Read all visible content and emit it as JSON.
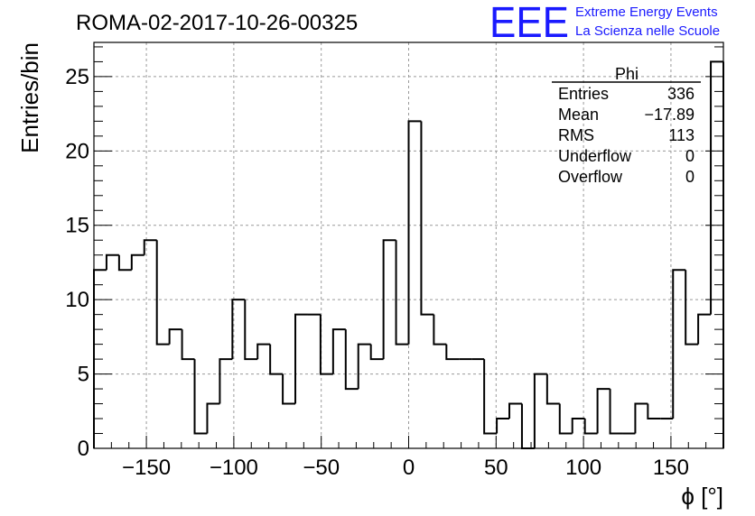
{
  "title": "ROMA-02-2017-10-26-00325",
  "logo": {
    "letters": "EEE",
    "line1": "Extreme Energy Events",
    "line2": "La Scienza nelle Scuole",
    "color": "#1a1aff"
  },
  "stats": {
    "name": "Phi",
    "rows": [
      {
        "label": "Entries",
        "value": "336"
      },
      {
        "label": "Mean",
        "value": "−17.89"
      },
      {
        "label": "RMS",
        "value": "113"
      },
      {
        "label": "Underflow",
        "value": "0"
      },
      {
        "label": "Overflow",
        "value": "0"
      }
    ]
  },
  "chart_data": {
    "type": "bar",
    "style": "step-histogram",
    "title": "ROMA-02-2017-10-26-00325",
    "xlabel": "ϕ [°]",
    "ylabel": "Entries/bin",
    "xlim": [
      -180,
      180
    ],
    "ylim": [
      0,
      27.3
    ],
    "grid": true,
    "xticks": [
      -150,
      -100,
      -50,
      0,
      50,
      100,
      150
    ],
    "xtick_labels": [
      "−150",
      "−100",
      "−50",
      "0",
      "50",
      "100",
      "150"
    ],
    "yticks": [
      0,
      5,
      10,
      15,
      20,
      25
    ],
    "ytick_labels": [
      "0",
      "5",
      "10",
      "15",
      "20",
      "25"
    ],
    "bin_width": 7.2,
    "bin_low_edges": [
      -180,
      -172.8,
      -165.6,
      -158.4,
      -151.2,
      -144,
      -136.8,
      -129.6,
      -122.4,
      -115.2,
      -108,
      -100.8,
      -93.6,
      -86.4,
      -79.2,
      -72,
      -64.8,
      -57.6,
      -50.4,
      -43.2,
      -36,
      -28.8,
      -21.6,
      -14.4,
      -7.2,
      0,
      7.2,
      14.4,
      21.6,
      28.8,
      36,
      43.2,
      50.4,
      57.6,
      64.8,
      72,
      79.2,
      86.4,
      93.6,
      100.8,
      108,
      115.2,
      122.4,
      129.6,
      136.8,
      144,
      151.2,
      158.4,
      165.6,
      172.8
    ],
    "values": [
      12,
      13,
      12,
      13,
      14,
      7,
      8,
      6,
      1,
      3,
      6,
      10,
      6,
      7,
      5,
      3,
      9,
      9,
      5,
      8,
      4,
      7,
      6,
      14,
      7,
      22,
      9,
      7,
      6,
      6,
      6,
      1,
      2,
      3,
      0,
      5,
      3,
      1,
      2,
      1,
      4,
      1,
      1,
      3,
      2,
      2,
      12,
      7,
      9,
      26
    ]
  }
}
